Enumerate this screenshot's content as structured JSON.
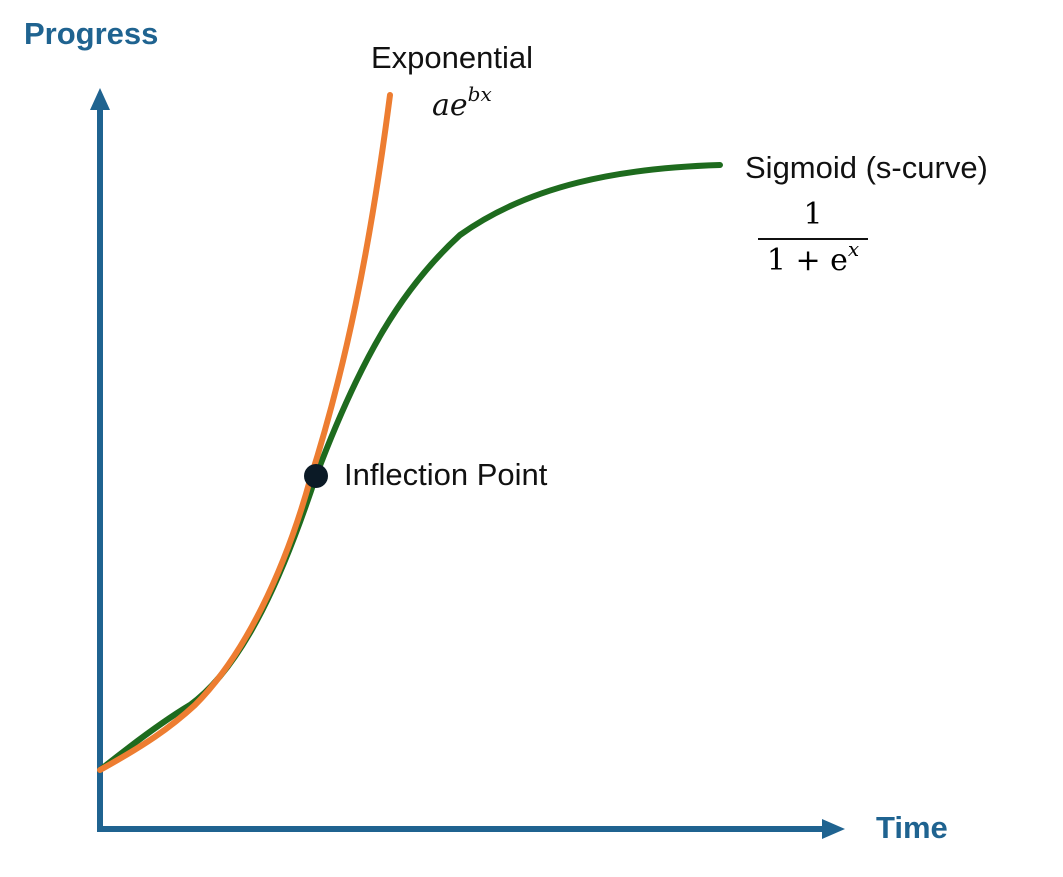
{
  "axes": {
    "y_title": "Progress",
    "x_title": "Time",
    "color": "#1f6390"
  },
  "curves": {
    "exponential": {
      "name": "Exponential",
      "formula_base": "ae",
      "formula_exp": "bx",
      "color": "#ed7d31"
    },
    "sigmoid": {
      "name": "Sigmoid (s-curve)",
      "formula_num": "1",
      "formula_den_base": "1 + e",
      "formula_den_exp": "x",
      "color": "#1e6b1e"
    }
  },
  "inflection": {
    "label": "Inflection Point",
    "marker_color": "#0b1a26"
  }
}
